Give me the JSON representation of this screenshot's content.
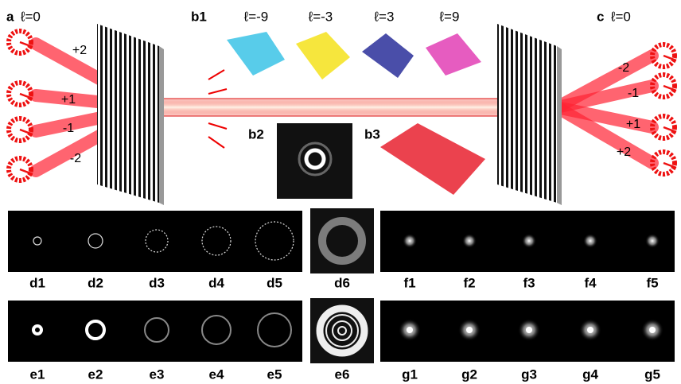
{
  "panel_a": {
    "label": "a",
    "mode": "ℓ=0",
    "orders": [
      "+2",
      "+1",
      "-1",
      "-2"
    ]
  },
  "panel_b": {
    "label": "b1",
    "modes": [
      "ℓ=-9",
      "ℓ=-3",
      "ℓ=3",
      "ℓ=9"
    ],
    "intensity_label": "b2",
    "hologram_label": "b3"
  },
  "panel_c": {
    "label": "c",
    "mode": "ℓ=0",
    "orders": [
      "-2",
      "-1",
      "+1",
      "+2"
    ]
  },
  "row_d": {
    "labels": [
      "d1",
      "d2",
      "d3",
      "d4",
      "d5",
      "d6"
    ]
  },
  "row_e": {
    "labels": [
      "e1",
      "e2",
      "e3",
      "e4",
      "e5",
      "e6"
    ]
  },
  "row_f": {
    "labels": [
      "f1",
      "f2",
      "f3",
      "f4",
      "f5"
    ]
  },
  "row_g": {
    "labels": [
      "g1",
      "g2",
      "g3",
      "g4",
      "g5"
    ]
  }
}
